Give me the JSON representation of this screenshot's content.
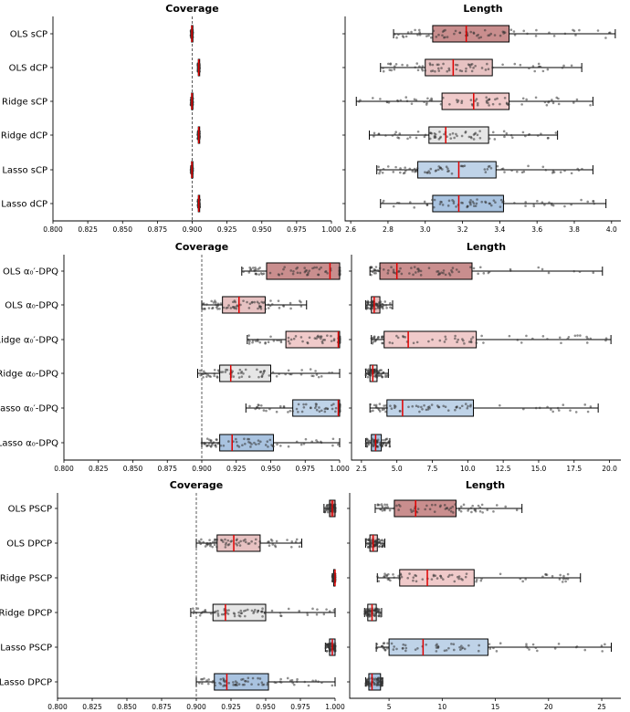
{
  "colors": {
    "OLS": "#c98e8e",
    "OLS_light": "#e7c2c2",
    "Ridge": "#f0caca",
    "Ridge_alt": "#e6e6e6",
    "Lasso": "#bfd3e8",
    "Lasso_alt": "#a9c3e0",
    "median": "#e00000",
    "points": "#333333"
  },
  "chart_data": [
    {
      "type": "box",
      "title": "Coverage",
      "categories": [
        "OLS sCP",
        "OLS dCP",
        "Ridge sCP",
        "Ridge dCP",
        "Lasso sCP",
        "Lasso dCP"
      ],
      "xlim": [
        0.8,
        1.0
      ],
      "xticks": [
        "0.800",
        "0.825",
        "0.850",
        "0.875",
        "0.900",
        "0.925",
        "0.950",
        "0.975",
        "1.000"
      ],
      "reference_line": 0.9,
      "boxes": [
        {
          "min": 0.899,
          "q1": 0.8995,
          "median": 0.8998,
          "q3": 0.9001,
          "max": 0.9004
        },
        {
          "min": 0.904,
          "q1": 0.9044,
          "median": 0.9047,
          "q3": 0.905,
          "max": 0.9054
        },
        {
          "min": 0.899,
          "q1": 0.8995,
          "median": 0.8998,
          "q3": 0.9001,
          "max": 0.9004
        },
        {
          "min": 0.904,
          "q1": 0.9044,
          "median": 0.9047,
          "q3": 0.905,
          "max": 0.9054
        },
        {
          "min": 0.899,
          "q1": 0.8995,
          "median": 0.8998,
          "q3": 0.9001,
          "max": 0.9004
        },
        {
          "min": 0.904,
          "q1": 0.9044,
          "median": 0.9047,
          "q3": 0.905,
          "max": 0.9054
        }
      ]
    },
    {
      "type": "box",
      "title": "Length",
      "categories": [
        "OLS sCP",
        "OLS dCP",
        "Ridge sCP",
        "Ridge dCP",
        "Lasso sCP",
        "Lasso dCP"
      ],
      "xlim": [
        2.57,
        4.05
      ],
      "xticks": [
        "2.6",
        "2.8",
        "3.0",
        "3.2",
        "3.4",
        "3.6",
        "3.8",
        "4.0"
      ],
      "boxes": [
        {
          "min": 2.83,
          "q1": 3.04,
          "median": 3.22,
          "q3": 3.45,
          "max": 4.02
        },
        {
          "min": 2.76,
          "q1": 3.0,
          "median": 3.15,
          "q3": 3.36,
          "max": 3.84
        },
        {
          "min": 2.63,
          "q1": 3.09,
          "median": 3.26,
          "q3": 3.45,
          "max": 3.9
        },
        {
          "min": 2.7,
          "q1": 3.02,
          "median": 3.11,
          "q3": 3.34,
          "max": 3.71
        },
        {
          "min": 2.74,
          "q1": 2.96,
          "median": 3.18,
          "q3": 3.38,
          "max": 3.9
        },
        {
          "min": 2.76,
          "q1": 3.04,
          "median": 3.18,
          "q3": 3.42,
          "max": 3.97
        }
      ]
    },
    {
      "type": "box",
      "title": "Coverage",
      "categories": [
        "OLS α₀′-DPQ",
        "OLS α₀-DPQ",
        "Ridge α₀′-DPQ",
        "Ridge α₀-DPQ",
        "Lasso α₀′-DPQ",
        "Lasso α₀-DPQ"
      ],
      "xlim": [
        0.8,
        1.0
      ],
      "xticks": [
        "0.800",
        "0.825",
        "0.850",
        "0.875",
        "0.900",
        "0.925",
        "0.950",
        "0.975",
        "1.000"
      ],
      "reference_line": 0.9,
      "boxes": [
        {
          "min": 0.929,
          "q1": 0.947,
          "median": 0.993,
          "q3": 1.0,
          "max": 1.0
        },
        {
          "min": 0.9,
          "q1": 0.915,
          "median": 0.927,
          "q3": 0.946,
          "max": 0.976
        },
        {
          "min": 0.933,
          "q1": 0.961,
          "median": 0.999,
          "q3": 1.0,
          "max": 1.0
        },
        {
          "min": 0.897,
          "q1": 0.913,
          "median": 0.921,
          "q3": 0.95,
          "max": 1.0
        },
        {
          "min": 0.932,
          "q1": 0.966,
          "median": 0.999,
          "q3": 1.0,
          "max": 1.0
        },
        {
          "min": 0.9,
          "q1": 0.913,
          "median": 0.922,
          "q3": 0.952,
          "max": 1.0
        }
      ]
    },
    {
      "type": "box",
      "title": "Length",
      "categories": [
        "OLS α₀′-DPQ",
        "OLS α₀-DPQ",
        "Ridge α₀′-DPQ",
        "Ridge α₀-DPQ",
        "Lasso α₀′-DPQ",
        "Lasso α₀-DPQ"
      ],
      "xlim": [
        1.8,
        20.8
      ],
      "xticks": [
        "2.5",
        "5.0",
        "7.5",
        "10.0",
        "12.5",
        "15.0",
        "17.5",
        "20.0"
      ],
      "boxes": [
        {
          "min": 3.1,
          "q1": 3.8,
          "median": 5.0,
          "q3": 10.3,
          "max": 19.5
        },
        {
          "min": 2.8,
          "q1": 3.2,
          "median": 3.4,
          "q3": 3.8,
          "max": 4.7
        },
        {
          "min": 3.2,
          "q1": 4.1,
          "median": 5.8,
          "q3": 10.6,
          "max": 20.1
        },
        {
          "min": 2.8,
          "q1": 3.1,
          "median": 3.3,
          "q3": 3.6,
          "max": 4.4
        },
        {
          "min": 3.1,
          "q1": 4.3,
          "median": 5.4,
          "q3": 10.4,
          "max": 19.2
        },
        {
          "min": 2.8,
          "q1": 3.2,
          "median": 3.5,
          "q3": 3.9,
          "max": 4.5
        }
      ]
    },
    {
      "type": "box",
      "title": "Coverage",
      "categories": [
        "OLS PSCP",
        "OLS DPCP",
        "Ridge PSCP",
        "Ridge DPCP",
        "Lasso PSCP",
        "Lasso DPCP"
      ],
      "xlim": [
        0.8,
        1.0
      ],
      "xticks": [
        "0.800",
        "0.825",
        "0.850",
        "0.875",
        "0.900",
        "0.925",
        "0.950",
        "0.975",
        "1.000"
      ],
      "reference_line": 0.9,
      "boxes": [
        {
          "min": 0.992,
          "q1": 0.996,
          "median": 0.998,
          "q3": 1.0,
          "max": 1.0
        },
        {
          "min": 0.9,
          "q1": 0.915,
          "median": 0.927,
          "q3": 0.946,
          "max": 0.976
        },
        {
          "min": 0.998,
          "q1": 0.999,
          "median": 1.0,
          "q3": 1.0,
          "max": 1.0
        },
        {
          "min": 0.896,
          "q1": 0.912,
          "median": 0.921,
          "q3": 0.95,
          "max": 1.0
        },
        {
          "min": 0.993,
          "q1": 0.996,
          "median": 0.998,
          "q3": 1.0,
          "max": 1.0
        },
        {
          "min": 0.9,
          "q1": 0.913,
          "median": 0.922,
          "q3": 0.952,
          "max": 1.0
        }
      ]
    },
    {
      "type": "box",
      "title": "Length",
      "categories": [
        "OLS PSCP",
        "OLS DPCP",
        "Ridge PSCP",
        "Ridge DPCP",
        "Lasso PSCP",
        "Lasso DPCP"
      ],
      "xlim": [
        1.3,
        26.8
      ],
      "xticks": [
        "5",
        "10",
        "15",
        "20",
        "25"
      ],
      "boxes": [
        {
          "min": 3.7,
          "q1": 5.5,
          "median": 7.5,
          "q3": 11.3,
          "max": 17.5
        },
        {
          "min": 2.8,
          "q1": 3.2,
          "median": 3.5,
          "q3": 3.9,
          "max": 4.6
        },
        {
          "min": 3.9,
          "q1": 6.0,
          "median": 8.6,
          "q3": 13.0,
          "max": 23.0
        },
        {
          "min": 2.7,
          "q1": 3.0,
          "median": 3.4,
          "q3": 3.8,
          "max": 4.3
        },
        {
          "min": 3.8,
          "q1": 5.0,
          "median": 8.2,
          "q3": 14.3,
          "max": 25.9
        },
        {
          "min": 2.8,
          "q1": 3.1,
          "median": 3.4,
          "q3": 4.2,
          "max": 4.4
        }
      ]
    }
  ]
}
